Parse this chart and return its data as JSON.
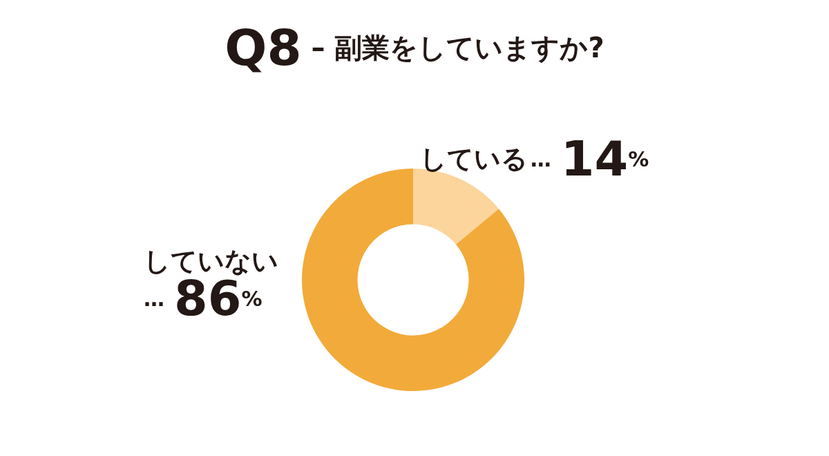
{
  "chart_data": {
    "type": "donut",
    "title": "Q8 – 副業をしていますか?",
    "categories": [
      "している",
      "していない"
    ],
    "values": [
      14,
      86
    ],
    "colors": [
      "#fbd59c",
      "#f2aa3a"
    ],
    "value_labels": [
      "…14%",
      "…86%"
    ],
    "legend": false
  }
}
